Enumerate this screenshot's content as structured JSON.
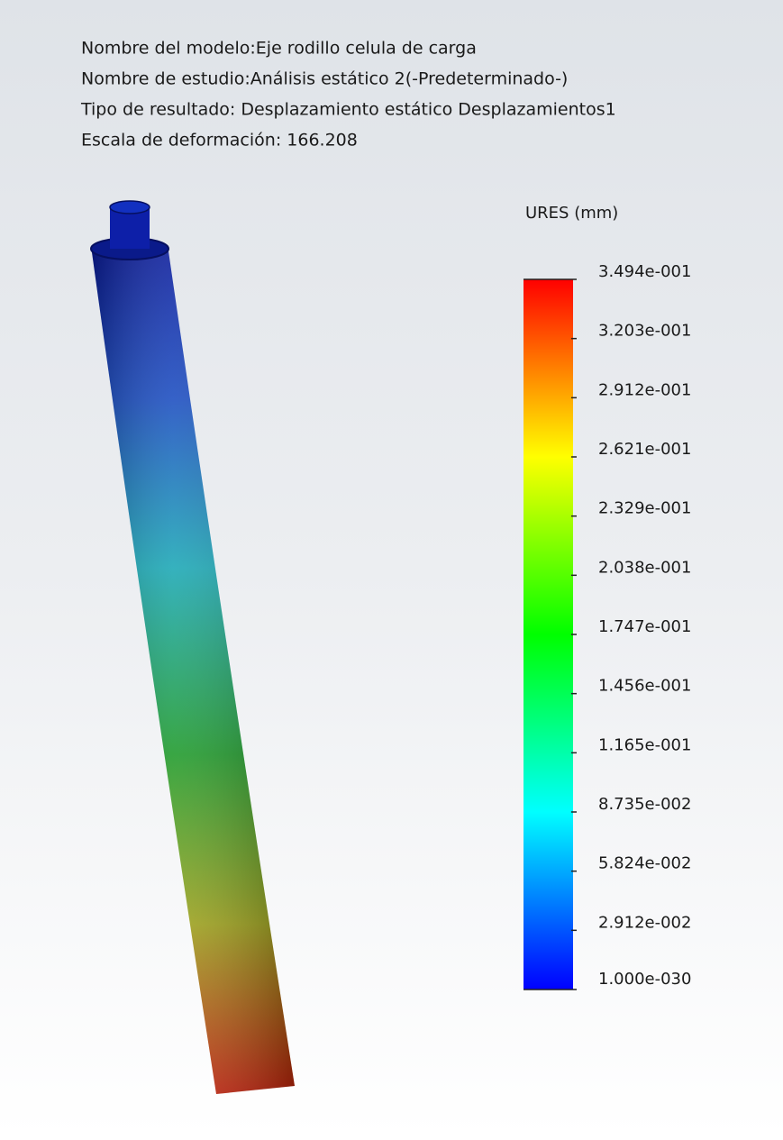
{
  "header": {
    "lines": [
      "Nombre del modelo:Eje rodillo celula de carga",
      "Nombre de estudio:Análisis estático 2(-Predeterminado-)",
      "Tipo de resultado: Desplazamiento estático Desplazamientos1",
      "Escala de deformación: 166.208"
    ]
  },
  "legend": {
    "title": "URES (mm)",
    "labels": [
      "3.494e-001",
      "3.203e-001",
      "2.912e-001",
      "2.621e-001",
      "2.329e-001",
      "2.038e-001",
      "1.747e-001",
      "1.456e-001",
      "1.165e-001",
      "8.735e-002",
      "5.824e-002",
      "2.912e-002",
      "1.000e-030"
    ]
  }
}
